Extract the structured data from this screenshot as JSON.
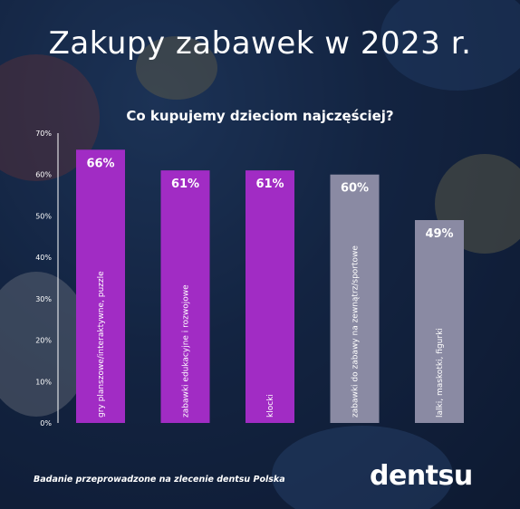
{
  "title": "Zakupy zabawek w 2023 r.",
  "footnote": "Badanie przeprowadzone na zlecenie dentsu Polska",
  "logo": "dentsu",
  "chart_data": {
    "type": "bar",
    "title": "Co kupujemy dzieciom najczęściej?",
    "categories": [
      "gry planszowe/interaktywne, puzzle",
      "zabawki edukacyjne i rozwojowe",
      "klocki",
      "zabawki do zabawy na zewnątrz/sportowe",
      "lalki, maskotki, figurki"
    ],
    "values": [
      66,
      61,
      61,
      60,
      49
    ],
    "value_labels": [
      "66%",
      "61%",
      "61%",
      "60%",
      "49%"
    ],
    "bar_colors": [
      "#a12cc4",
      "#a12cc4",
      "#a12cc4",
      "#8a8aa3",
      "#8a8aa3"
    ],
    "ylim": [
      0,
      70
    ],
    "yticks": [
      "0%",
      "10%",
      "20%",
      "30%",
      "40%",
      "50%",
      "60%",
      "70%"
    ],
    "grid": false,
    "xlabel": "",
    "ylabel": ""
  }
}
